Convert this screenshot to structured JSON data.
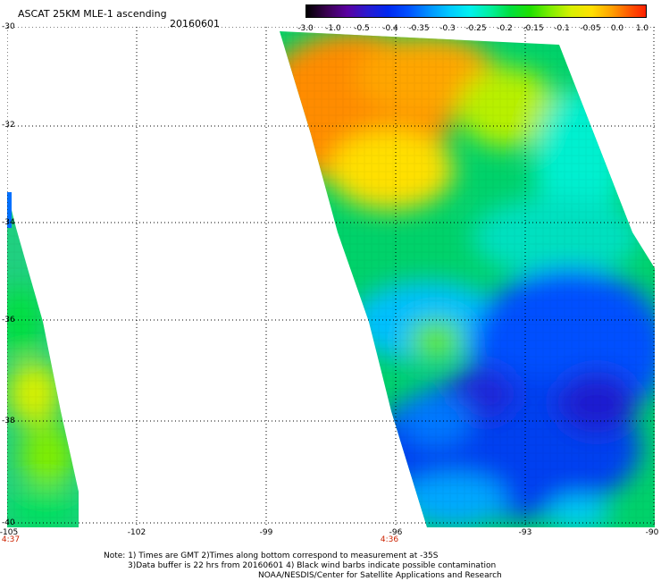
{
  "header": {
    "title": "ASCAT 25KM MLE-1 ascending",
    "date": "20160601"
  },
  "colorbar": {
    "labels": [
      "-3.0",
      "-1.0",
      "-0.5",
      "-0.4",
      "-0.35",
      "-0.3",
      "-0.25",
      "-0.2",
      "-0.15",
      "-0.1",
      "-0.05",
      "0.0",
      "1.0"
    ],
    "colors": [
      "#000000",
      "#3a0050",
      "#5a00a0",
      "#0028f0",
      "#0050ff",
      "#00c8ff",
      "#00f0a0",
      "#20e000",
      "#80ee00",
      "#d8f000",
      "#ffe000",
      "#ffa000",
      "#ff2000"
    ]
  },
  "axes": {
    "lat_labels": [
      "-30",
      "-32",
      "-34",
      "-36",
      "-38",
      "-40"
    ],
    "lon_labels": [
      "-105",
      "-102",
      "-99",
      "-96",
      "-93",
      "-90"
    ],
    "time_labels": [
      "4:37",
      "4:36"
    ]
  },
  "notes": {
    "line1": "Note: 1) Times are GMT 2)Times along bottom correspond to measurement at -35S",
    "line2": "3)Data buffer is 22 hrs from 20160601 4) Black wind barbs indicate possible contamination",
    "line3": "NOAA/NESDIS/Center for Satellite Applications and Research"
  }
}
